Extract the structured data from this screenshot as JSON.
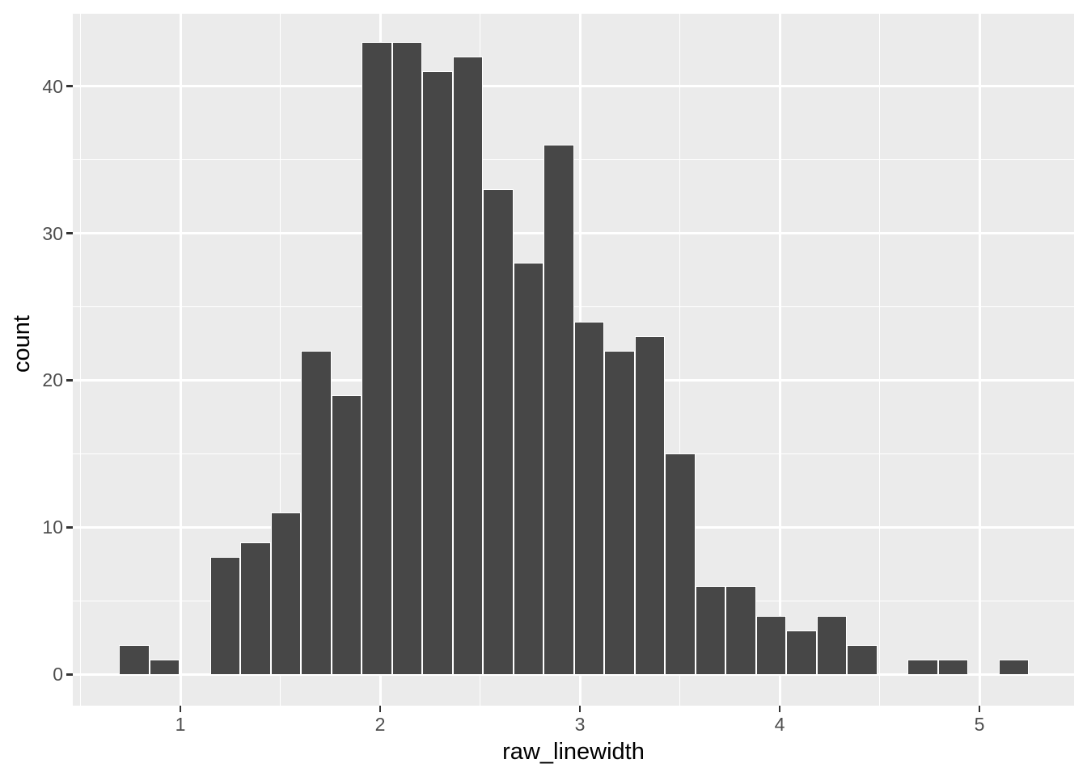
{
  "chart_data": {
    "type": "bar",
    "subtype": "histogram",
    "title": "",
    "xlabel": "raw_linewidth",
    "ylabel": "count",
    "x_ticks": [
      1,
      2,
      3,
      4,
      5
    ],
    "x_minor_ticks": [
      0.5,
      1.5,
      2.5,
      3.5,
      4.5
    ],
    "y_ticks": [
      0,
      10,
      20,
      30,
      40
    ],
    "y_minor_ticks": [
      5,
      15,
      25,
      35,
      45
    ],
    "xlim": [
      0.4615,
      5.4736
    ],
    "ylim": [
      -2.128,
      45.04
    ],
    "bin_start": 0.694,
    "binwidth": 0.1518,
    "counts": [
      2,
      1,
      0,
      8,
      9,
      11,
      22,
      19,
      43,
      43,
      41,
      42,
      33,
      28,
      36,
      24,
      22,
      23,
      15,
      6,
      6,
      4,
      3,
      4,
      2,
      0,
      1,
      1,
      0,
      1
    ],
    "grid": true,
    "legend_position": "none",
    "colors": {
      "bar_fill": "#474747",
      "bar_border": "#ffffff",
      "panel_background": "#ebebeb",
      "grid_major": "#ffffff",
      "grid_minor": "#ffffff",
      "axis_text": "#4d4d4d",
      "axis_title": "#000000",
      "tick_mark": "#333333",
      "figure_background": "#ffffff"
    }
  }
}
